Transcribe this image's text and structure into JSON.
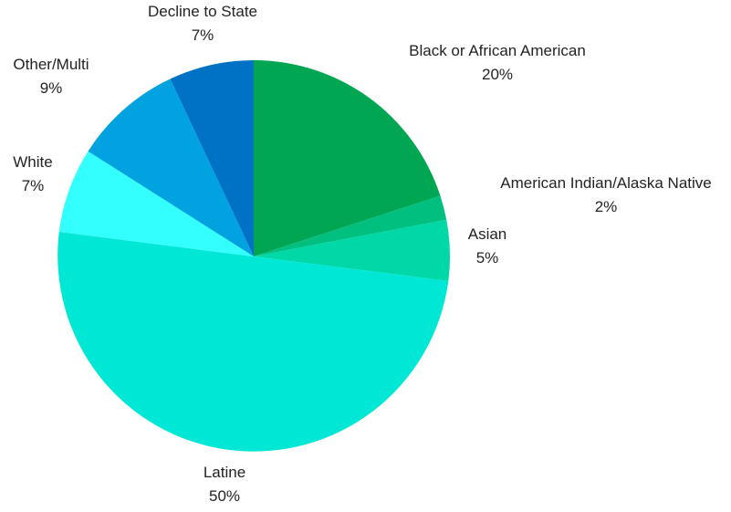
{
  "chart_data": {
    "type": "pie",
    "title": "",
    "slices": [
      {
        "label": "Black or African American",
        "value": 20,
        "value_label": "20%",
        "color": "#00a651"
      },
      {
        "label": "American Indian/Alaska Native",
        "value": 2,
        "value_label": "2%",
        "color": "#00bf7f"
      },
      {
        "label": "Asian",
        "value": 5,
        "value_label": "5%",
        "color": "#00d8a8"
      },
      {
        "label": "Latine",
        "value": 50,
        "value_label": "50%",
        "color": "#00e8d5"
      },
      {
        "label": "White",
        "value": 7,
        "value_label": "7%",
        "color": "#33ffff"
      },
      {
        "label": "Other/Multi",
        "value": 9,
        "value_label": "9%",
        "color": "#00a3e0"
      },
      {
        "label": "Decline to State",
        "value": 7,
        "value_label": "7%",
        "color": "#0072c6"
      }
    ],
    "start_angle": "12 o'clock",
    "direction": "clockwise",
    "legend": "none",
    "data_labels": "outside"
  }
}
